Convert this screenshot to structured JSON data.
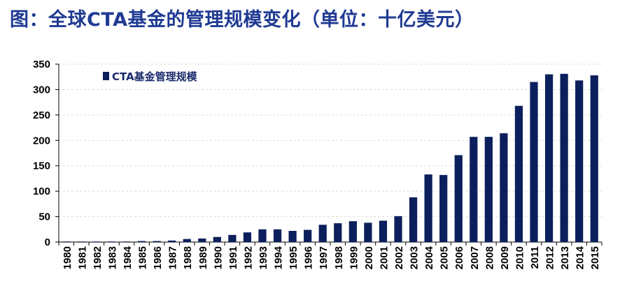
{
  "title": "图：全球CTA基金的管理规模变化（单位：十亿美元）",
  "colors": {
    "bar": "#0b1f5c",
    "title": "#1f3a93",
    "grid": "#d9d9d9"
  },
  "chart_data": {
    "type": "bar",
    "title": "图：全球CTA基金的管理规模变化（单位：十亿美元）",
    "categories": [
      "1980",
      "1981",
      "1982",
      "1983",
      "1984",
      "1985",
      "1986",
      "1987",
      "1988",
      "1989",
      "1990",
      "1991",
      "1992",
      "1993",
      "1994",
      "1995",
      "1996",
      "1997",
      "1998",
      "1999",
      "2000",
      "2001",
      "2002",
      "2003",
      "2004",
      "2005",
      "2006",
      "2007",
      "2008",
      "2009",
      "2010",
      "2011",
      "2012",
      "2013",
      "2014",
      "2015"
    ],
    "series": [
      {
        "name": "CTA基金管理规模",
        "values": [
          0.3,
          0.5,
          0.6,
          0.8,
          1,
          2,
          2,
          3,
          6,
          7,
          10,
          14,
          19,
          25,
          25,
          22,
          24,
          34,
          37,
          41,
          38,
          42,
          51,
          88,
          133,
          132,
          171,
          207,
          207,
          214,
          268,
          315,
          330,
          331,
          318,
          328
        ]
      }
    ],
    "yticks": [
      0,
      50,
      100,
      150,
      200,
      250,
      300,
      350
    ],
    "ylim": [
      0,
      350
    ],
    "grid": true,
    "legend": "top-left",
    "xlabel": "",
    "ylabel": ""
  }
}
